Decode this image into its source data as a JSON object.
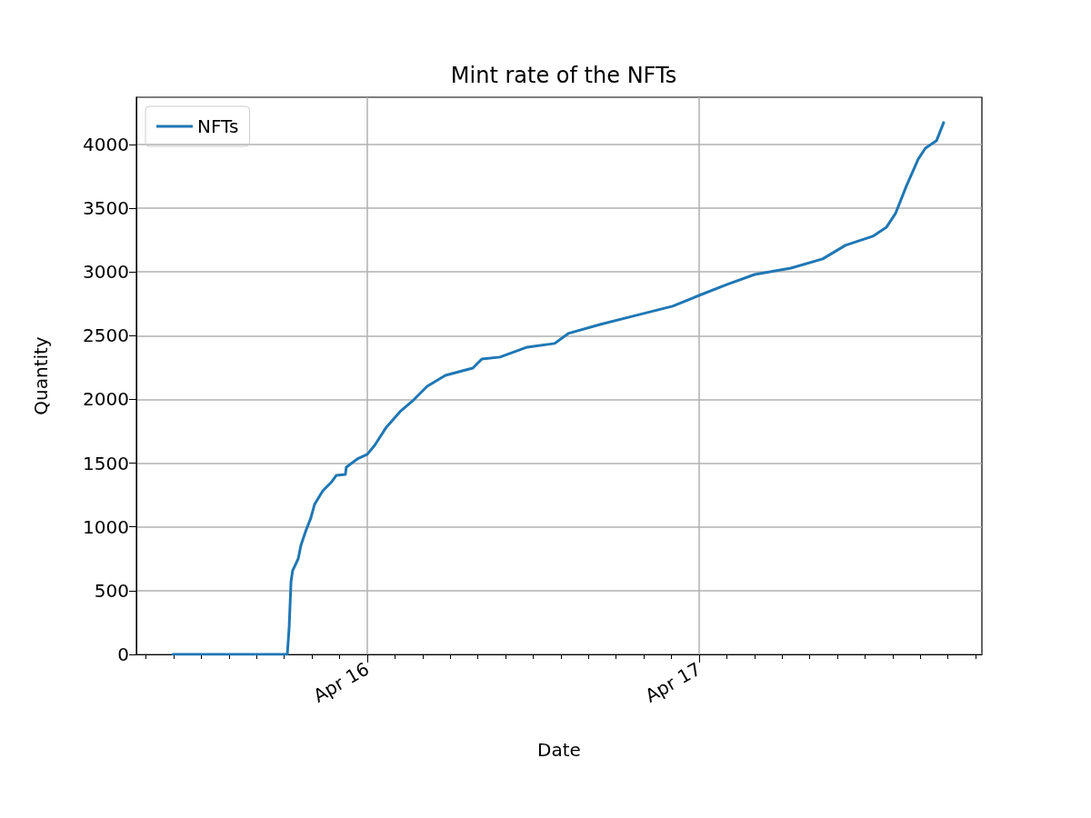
{
  "chart_data": {
    "type": "line",
    "title": "Mint rate of the NFTs",
    "xlabel": "Date",
    "ylabel": "Quantity",
    "xlim": [
      "--04-15T07:18",
      "--04-17T20:27"
    ],
    "xticks": [
      {
        "value": "--04-15T08:00",
        "label": null
      },
      {
        "value": "--04-15T10:00",
        "label": null
      },
      {
        "value": "--04-15T12:00",
        "label": null
      },
      {
        "value": "--04-15T14:00",
        "label": null
      },
      {
        "value": "--04-15T16:00",
        "label": null
      },
      {
        "value": "--04-15T18:00",
        "label": null
      },
      {
        "value": "--04-15T20:00",
        "label": null
      },
      {
        "value": "--04-15T22:00",
        "label": null
      },
      {
        "value": "--04-16",
        "label": "Apr 16"
      },
      {
        "value": "--04-16T02:00",
        "label": null
      },
      {
        "value": "--04-16T04:00",
        "label": null
      },
      {
        "value": "--04-16T06:00",
        "label": null
      },
      {
        "value": "--04-16T08:00",
        "label": null
      },
      {
        "value": "--04-16T10:00",
        "label": null
      },
      {
        "value": "--04-16T12:00",
        "label": null
      },
      {
        "value": "--04-16T14:00",
        "label": null
      },
      {
        "value": "--04-16T16:00",
        "label": null
      },
      {
        "value": "--04-16T18:00",
        "label": null
      },
      {
        "value": "--04-16T20:00",
        "label": null
      },
      {
        "value": "--04-16T22:00",
        "label": null
      },
      {
        "value": "--04-17",
        "label": "Apr 17"
      },
      {
        "value": "--04-17T02:00",
        "label": null
      },
      {
        "value": "--04-17T04:00",
        "label": null
      },
      {
        "value": "--04-17T06:00",
        "label": null
      },
      {
        "value": "--04-17T08:00",
        "label": null
      },
      {
        "value": "--04-17T10:00",
        "label": null
      },
      {
        "value": "--04-17T12:00",
        "label": null
      },
      {
        "value": "--04-17T14:00",
        "label": null
      },
      {
        "value": "--04-17T16:00",
        "label": null
      },
      {
        "value": "--04-17T18:00",
        "label": null
      },
      {
        "value": "--04-17T20:00",
        "label": null
      }
    ],
    "ylim": [
      0,
      4370
    ],
    "yticks": [
      0,
      500,
      1000,
      1500,
      2000,
      2500,
      3000,
      3500,
      4000
    ],
    "grid": true,
    "legend": "top left",
    "line_style": "solid",
    "marker": "none",
    "x": [
      "--04-15T09:56",
      "--04-15T18:13",
      "--04-15T18:21",
      "--04-15T18:29",
      "--04-15T18:36",
      "--04-15T19:00",
      "--04-15T19:12",
      "--04-15T19:32",
      "--04-15T19:55",
      "--04-15T20:11",
      "--04-15T20:47",
      "--04-15T21:26",
      "--04-15T21:46",
      "--04-15T22:25",
      "--04-15T22:29",
      "--04-15T23:17",
      "--04-16T00:00",
      "--04-16T00:32",
      "--04-16T01:23",
      "--04-16T02:22",
      "--04-16T03:21",
      "--04-16T04:20",
      "--04-16T05:39",
      "--04-16T07:38",
      "--04-16T08:17",
      "--04-16T09:36",
      "--04-16T11:34",
      "--04-16T13:33",
      "--04-16T14:32",
      "--04-16T16:50",
      "--04-16T19:28",
      "--04-16T22:05",
      "--04-17T00:00",
      "--04-17T02:02",
      "--04-17T04:01",
      "--04-17T06:38",
      "--04-17T08:56",
      "--04-17T10:35",
      "--04-17T12:34",
      "--04-17T13:33",
      "--04-17T14:12",
      "--04-17T14:59",
      "--04-17T15:51",
      "--04-17T16:22",
      "--04-17T17:10",
      "--04-17T17:41"
    ],
    "series": [
      {
        "name": "NFTs",
        "color": "#1f77b4",
        "values": [
          0,
          0,
          214,
          570,
          656,
          749,
          856,
          963,
          1070,
          1176,
          1283,
          1355,
          1405,
          1412,
          1469,
          1533,
          1569,
          1640,
          1783,
          1904,
          1996,
          2103,
          2189,
          2246,
          2317,
          2332,
          2410,
          2439,
          2517,
          2588,
          2660,
          2731,
          2816,
          2902,
          2980,
          3030,
          3102,
          3209,
          3280,
          3351,
          3458,
          3672,
          3886,
          3971,
          4029,
          4171
        ]
      }
    ]
  }
}
